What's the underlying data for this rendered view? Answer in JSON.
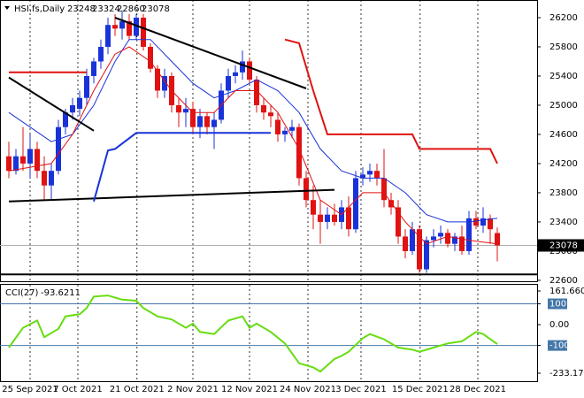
{
  "chart_data": [
    {
      "type": "candlestick",
      "title": "HSI.fs,Daily",
      "up_color": "#1a33d9",
      "down_color": "#e01212",
      "grid": true,
      "x": [
        0,
        1,
        2,
        3,
        4,
        5,
        6,
        7,
        8,
        9,
        10,
        11,
        12,
        13,
        14,
        15,
        16,
        17,
        18,
        19,
        20,
        21,
        22,
        23,
        24,
        25,
        26,
        27,
        28,
        29,
        30,
        31,
        32,
        33,
        34,
        35,
        36,
        37,
        38,
        39,
        40,
        41,
        42,
        43,
        44,
        45,
        46,
        47,
        48,
        49,
        50,
        51,
        52,
        53,
        54,
        55,
        56,
        57,
        58,
        59,
        60,
        61,
        62,
        63,
        64,
        65,
        66,
        67,
        68,
        69
      ],
      "open": [
        24300,
        24100,
        24300,
        24200,
        24400,
        24100,
        23900,
        24100,
        24700,
        24900,
        24950,
        25100,
        25400,
        25600,
        25800,
        26100,
        26050,
        26150,
        25950,
        26200,
        25800,
        25500,
        25200,
        25400,
        25000,
        24900,
        24950,
        24700,
        24850,
        24700,
        24800,
        25200,
        25400,
        25450,
        25600,
        25350,
        25000,
        24900,
        24800,
        24600,
        24650,
        24700,
        24000,
        23700,
        23500,
        23400,
        23500,
        23400,
        23600,
        23300,
        24000,
        24050,
        24100,
        24000,
        23700,
        23600,
        23200,
        23000,
        23300,
        22750,
        23150,
        23200,
        23250,
        23100,
        23200,
        23000,
        23450,
        23350,
        23450,
        23248
      ],
      "high": [
        24500,
        24400,
        24700,
        24600,
        24500,
        24300,
        24200,
        24800,
        24950,
        25100,
        25200,
        25500,
        25650,
        25900,
        26200,
        26250,
        26300,
        26250,
        26250,
        26250,
        25850,
        25550,
        25500,
        25450,
        25100,
        25100,
        25050,
        24950,
        24900,
        24900,
        25300,
        25500,
        25550,
        25750,
        25650,
        25400,
        25100,
        25000,
        24900,
        24700,
        24800,
        24750,
        24100,
        23900,
        23700,
        23600,
        23650,
        23700,
        23750,
        24100,
        24150,
        24200,
        24200,
        24400,
        23800,
        23700,
        23300,
        23400,
        23350,
        23200,
        23300,
        23350,
        23300,
        23250,
        23350,
        23550,
        23550,
        23600,
        23500,
        23324
      ],
      "low": [
        24000,
        24050,
        24100,
        24000,
        24000,
        23700,
        23700,
        24050,
        24600,
        24800,
        24850,
        25000,
        25300,
        25500,
        25700,
        25950,
        25900,
        25900,
        25900,
        25750,
        25450,
        25100,
        25100,
        24900,
        24700,
        24700,
        24600,
        24550,
        24600,
        24400,
        24750,
        25100,
        25300,
        25350,
        25300,
        24900,
        24800,
        24700,
        24500,
        24500,
        24550,
        23900,
        23600,
        23300,
        23100,
        23300,
        23350,
        23300,
        23200,
        23250,
        23900,
        23950,
        23900,
        23600,
        23500,
        23100,
        22900,
        22950,
        22700,
        22700,
        23050,
        23100,
        23050,
        23000,
        22950,
        22950,
        23300,
        23250,
        23100,
        22860
      ],
      "close": [
        24100,
        24300,
        24200,
        24400,
        24100,
        23900,
        24100,
        24700,
        24900,
        25000,
        25100,
        25400,
        25600,
        25800,
        26100,
        26050,
        26150,
        25950,
        26200,
        25800,
        25500,
        25200,
        25400,
        25000,
        24900,
        24950,
        24700,
        24850,
        24700,
        24800,
        25200,
        25400,
        25450,
        25600,
        25350,
        25000,
        24900,
        24850,
        24600,
        24650,
        24700,
        24000,
        23700,
        23500,
        23400,
        23500,
        23400,
        23600,
        23300,
        24000,
        24050,
        24100,
        24000,
        23700,
        23600,
        23200,
        23000,
        23300,
        22750,
        23150,
        23200,
        23250,
        23100,
        23200,
        23000,
        23450,
        23350,
        23450,
        23300,
        23078
      ],
      "lines": [
        {
          "color": "#1a33d9",
          "width": 1,
          "x": [
            0,
            3,
            6,
            9,
            12,
            15,
            17,
            20,
            23,
            26,
            29,
            32,
            35,
            38,
            41,
            44,
            47,
            50,
            53,
            56,
            59,
            62,
            65,
            69
          ],
          "values": [
            24900,
            24700,
            24500,
            24600,
            25000,
            25600,
            25900,
            25900,
            25600,
            25300,
            25100,
            25200,
            25350,
            25200,
            24900,
            24400,
            24100,
            24000,
            24000,
            23800,
            23500,
            23400,
            23400,
            23450
          ]
        },
        {
          "color": "#e01212",
          "width": 1,
          "x": [
            0,
            3,
            6,
            9,
            12,
            15,
            17,
            20,
            23,
            26,
            29,
            32,
            35,
            38,
            41,
            44,
            47,
            50,
            53,
            56,
            59,
            62,
            65,
            69
          ],
          "values": [
            24100,
            24150,
            24200,
            24600,
            25200,
            25700,
            25800,
            25600,
            25200,
            24900,
            24900,
            25200,
            25200,
            24900,
            24400,
            23700,
            23500,
            23800,
            23800,
            23400,
            23100,
            23200,
            23150,
            23100
          ]
        },
        {
          "color": "#000000",
          "width": 2,
          "x": [
            0,
            12
          ],
          "values": [
            25380,
            24650
          ]
        },
        {
          "color": "#000000",
          "width": 2,
          "x": [
            15,
            42
          ],
          "values": [
            26200,
            25230
          ]
        },
        {
          "color": "#000000",
          "width": 2,
          "x": [
            0,
            46
          ],
          "values": [
            23680,
            23840
          ]
        },
        {
          "color": "#000000",
          "width": 2,
          "x": [
            -1.25,
            74.625
          ],
          "values": [
            22680,
            22680
          ]
        },
        {
          "color": "#e01212",
          "width": 2,
          "x": [
            0,
            11,
            25,
            39,
            41,
            43,
            45,
            57,
            58,
            68,
            69
          ],
          "values": [
            25450,
            25450,
            null,
            25900,
            25850,
            25200,
            24600,
            24600,
            24400,
            24400,
            24200
          ]
        },
        {
          "color": "#1a33d9",
          "width": 2,
          "x": [
            12,
            14,
            15,
            18,
            37
          ],
          "values": [
            23680,
            24380,
            24400,
            24620,
            24620
          ]
        }
      ],
      "xlim": [
        -1.25,
        74.625
      ],
      "ylim": [
        22587,
        26442
      ],
      "xticks": [
        {
          "value": 3,
          "label": "25 Sep 2021"
        },
        {
          "value": 9.75,
          "label": "7 Oct 2021"
        },
        {
          "value": 18.1,
          "label": "21 Oct 2021"
        },
        {
          "value": 26,
          "label": "2 Nov 2021"
        },
        {
          "value": 34,
          "label": "12 Nov 2021"
        },
        {
          "value": 42.25,
          "label": "24 Nov 2021"
        },
        {
          "value": 49.75,
          "label": "3 Dec 2021"
        },
        {
          "value": 58.1,
          "label": "15 Dec 2021"
        },
        {
          "value": 66.25,
          "label": "28 Dec 2021"
        }
      ],
      "yticks": [
        26200,
        25800,
        25400,
        25000,
        24600,
        24200,
        23800,
        23400,
        23000,
        22600
      ]
    },
    {
      "type": "line",
      "title": "CCI(27)",
      "color": "#66dd11",
      "x": [
        0,
        2,
        4,
        5,
        7,
        8,
        10,
        11,
        12,
        14,
        16,
        18,
        19,
        21,
        23,
        25,
        26,
        27,
        29,
        31,
        33,
        34,
        35,
        37,
        39,
        41,
        43,
        44,
        46,
        47,
        48,
        50,
        51,
        53,
        55,
        57,
        58,
        60,
        62,
        64,
        66,
        67,
        69
      ],
      "values": [
        -110,
        -15,
        20,
        -60,
        -20,
        40,
        50,
        80,
        135,
        140,
        120,
        115,
        80,
        40,
        25,
        -15,
        5,
        -35,
        -45,
        20,
        40,
        -15,
        5,
        -35,
        -90,
        -185,
        -205,
        -225,
        -165,
        -150,
        -130,
        -65,
        -45,
        -70,
        -110,
        -120,
        -130,
        -110,
        -90,
        -80,
        -35,
        -45,
        -93.6211
      ],
      "level_color": "#4477aa",
      "levels": [
        100,
        -100
      ],
      "xlim": [
        -1.25,
        74.625
      ],
      "ylim": [
        -233.1713,
        161.6609
      ],
      "yticks": [
        161.6609,
        100,
        {
          "value": 0,
          "label": "0.00"
        },
        -100,
        -233.1713
      ]
    }
  ]
}
